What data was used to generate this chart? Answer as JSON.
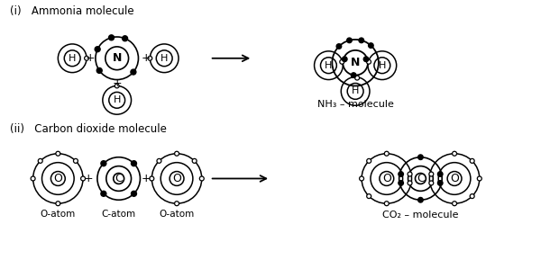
{
  "bg_color": "#ffffff",
  "title_i": "(i)   Ammonia molecule",
  "title_ii": "(ii)   Carbon dioxide molecule",
  "nh3_label": "NH₃ – molecule",
  "co2_label": "CO₂ – molecule",
  "o_atom_label": "O-atom",
  "c_atom_label": "C-atom",
  "fig_w": 6.1,
  "fig_h": 2.89,
  "dpi": 100
}
